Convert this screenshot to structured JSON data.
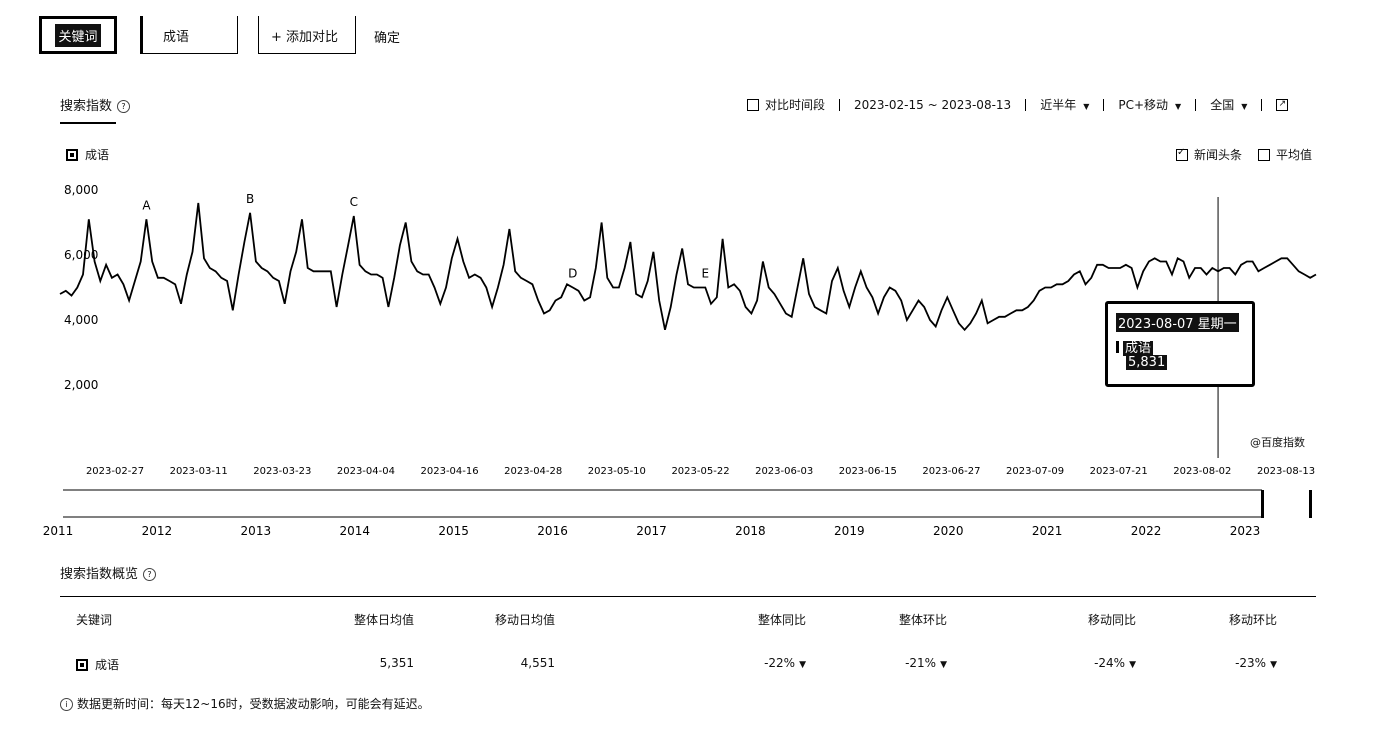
{
  "top_bar": {
    "keyword_button": "关键词",
    "keyword_value": "成语",
    "add_compare": "+ 添加对比",
    "confirm": "确定"
  },
  "header": {
    "tab": "搜索指数",
    "compare_period": "对比时间段",
    "date_range": "2023-02-15 ~ 2023-08-13",
    "period": "近半年",
    "device": "PC+移动",
    "region": "全国"
  },
  "legend": {
    "series": "成语",
    "news": "新闻头条",
    "average": "平均值"
  },
  "tooltip": {
    "date": "2023-08-07 星期一",
    "series": "成语",
    "value": "5,831"
  },
  "credit": "@百度指数",
  "chart_data": {
    "type": "line",
    "x_start": "2023-02-15",
    "x_end": "2023-08-13",
    "x_ticks": [
      "2023-02-27",
      "2023-03-11",
      "2023-03-23",
      "2023-04-04",
      "2023-04-16",
      "2023-04-28",
      "2023-05-10",
      "2023-05-22",
      "2023-06-03",
      "2023-06-15",
      "2023-06-27",
      "2023-07-09",
      "2023-07-21",
      "2023-08-02",
      "2023-08-13"
    ],
    "y_ticks": [
      "8,000",
      "6,000",
      "4,000",
      "2,000"
    ],
    "ylim": [
      0,
      8000
    ],
    "series": [
      {
        "name": "成语",
        "values": [
          4800,
          4900,
          4750,
          5000,
          5400,
          7100,
          5800,
          5200,
          5700,
          5300,
          5400,
          5100,
          4600,
          5200,
          5800,
          7100,
          5800,
          5300,
          5300,
          5200,
          5100,
          4500,
          5400,
          6100,
          7600,
          5900,
          5600,
          5500,
          5300,
          5200,
          4300,
          5400,
          6400,
          7300,
          5800,
          5600,
          5500,
          5300,
          5200,
          4500,
          5500,
          6100,
          7100,
          5600,
          5500,
          5500,
          5500,
          5500,
          4400,
          5400,
          6300,
          7200,
          5700,
          5500,
          5400,
          5400,
          5300,
          4400,
          5300,
          6300,
          7000,
          5800,
          5500,
          5400,
          5400,
          5000,
          4500,
          5000,
          5900,
          6500,
          5800,
          5300,
          5400,
          5300,
          5000,
          4400,
          5000,
          5700,
          6800,
          5500,
          5300,
          5200,
          5100,
          4600,
          4200,
          4300,
          4600,
          4700,
          5100,
          5000,
          4900,
          4600,
          4700,
          5600,
          7000,
          5300,
          5000,
          5000,
          5600,
          6400,
          4800,
          4700,
          5200,
          6100,
          4600,
          3700,
          4400,
          5400,
          6200,
          5100,
          5000,
          5000,
          5000,
          4500,
          4700,
          6500,
          5000,
          5100,
          4900,
          4400,
          4200,
          4600,
          5800,
          5000,
          4800,
          4500,
          4200,
          4100,
          5000,
          5900,
          4800,
          4400,
          4300,
          4200,
          5200,
          5600,
          4900,
          4400,
          5000,
          5500,
          5000,
          4700,
          4200,
          4700,
          5000,
          4900,
          4600,
          4000,
          4300,
          4600,
          4400,
          4000,
          3800,
          4300,
          4700,
          4300,
          3900,
          3700,
          3900,
          4200,
          4600,
          3900,
          4000,
          4100,
          4100,
          4200,
          4300,
          4300,
          4400,
          4600,
          4900,
          5000,
          5000,
          5100,
          5100,
          5200,
          5400,
          5500,
          5100,
          5300,
          5700,
          5700,
          5600,
          5600,
          5600,
          5700,
          5600,
          5000,
          5500,
          5800,
          5900,
          5800,
          5800,
          5400,
          5900,
          5800,
          5300,
          5600,
          5600,
          5400,
          5600,
          5500,
          5600,
          5600,
          5400,
          5700,
          5800,
          5800,
          5500,
          5600,
          5700,
          5800,
          5900,
          5900,
          5700,
          5500,
          5400,
          5300,
          5400
        ]
      }
    ],
    "annotations": [
      {
        "label": "A",
        "index": 15
      },
      {
        "label": "B",
        "index": 33
      },
      {
        "label": "C",
        "index": 51
      },
      {
        "label": "D",
        "index": 89
      },
      {
        "label": "E",
        "index": 112
      }
    ],
    "highlight_index": 201,
    "brush_years": [
      "2011",
      "2012",
      "2013",
      "2014",
      "2015",
      "2016",
      "2017",
      "2018",
      "2019",
      "2020",
      "2021",
      "2022",
      "2023"
    ],
    "grid": false,
    "legend_position": "top-left"
  },
  "overview": {
    "title": "搜索指数概览",
    "headers": [
      "关键词",
      "整体日均值",
      "移动日均值",
      "整体同比",
      "整体环比",
      "移动同比",
      "移动环比"
    ],
    "row": {
      "keyword": "成语",
      "overall_avg": "5,351",
      "mobile_avg": "4,551",
      "overall_yoy": "-22%",
      "overall_mom": "-21%",
      "mobile_yoy": "-24%",
      "mobile_mom": "-23%"
    }
  },
  "note": "数据更新时间：每天12~16时，受数据波动影响，可能会有延迟。"
}
